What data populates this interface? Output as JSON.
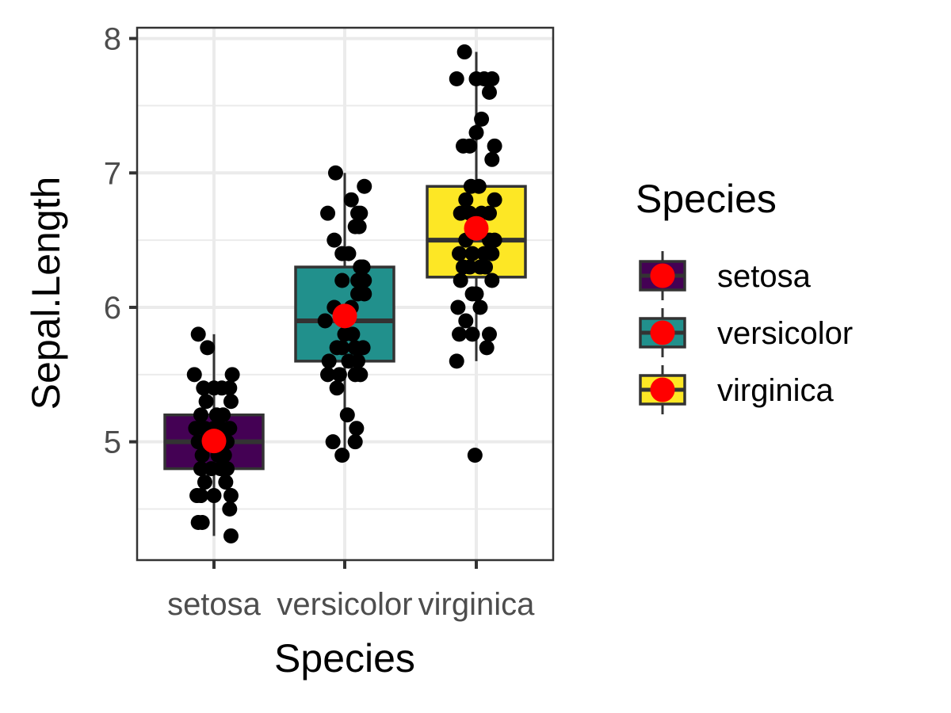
{
  "chart_data": {
    "type": "box",
    "xlabel": "Species",
    "ylabel": "Sepal.Length",
    "categories": [
      "setosa",
      "versicolor",
      "virginica"
    ],
    "ylim": [
      4.12,
      8.08
    ],
    "y_ticks": [
      5,
      6,
      7,
      8
    ],
    "y_minor_ticks": [
      4.5,
      5.5,
      6.5,
      7.5
    ],
    "grid": true,
    "legend": {
      "title": "Species",
      "position": "right",
      "entries": [
        "setosa",
        "versicolor",
        "virginica"
      ]
    },
    "colors": {
      "setosa": "#440154",
      "versicolor": "#21908C",
      "virginica": "#FDE725",
      "mean_marker": "#FF0000",
      "points": "#000000",
      "box_outline": "#333333"
    },
    "boxes": [
      {
        "name": "setosa",
        "min": 4.3,
        "q1": 4.8,
        "median": 5.0,
        "q3": 5.2,
        "max": 5.8,
        "mean": 5.006,
        "outliers": []
      },
      {
        "name": "versicolor",
        "min": 4.9,
        "q1": 5.6,
        "median": 5.9,
        "q3": 6.3,
        "max": 7.0,
        "mean": 5.936,
        "outliers": []
      },
      {
        "name": "virginica",
        "min": 5.6,
        "q1": 6.225,
        "median": 6.5,
        "q3": 6.9,
        "max": 7.9,
        "mean": 6.588,
        "outliers": [
          4.9
        ]
      }
    ],
    "points": [
      {
        "series": "setosa",
        "values": [
          {
            "dx": -0.12,
            "y": 5.8
          },
          {
            "dx": -0.05,
            "y": 5.7
          },
          {
            "dx": -0.15,
            "y": 5.5
          },
          {
            "dx": 0.14,
            "y": 5.5
          },
          {
            "dx": -0.08,
            "y": 5.4
          },
          {
            "dx": 0.0,
            "y": 5.4
          },
          {
            "dx": 0.06,
            "y": 5.4
          },
          {
            "dx": 0.12,
            "y": 5.4
          },
          {
            "dx": -0.06,
            "y": 5.3
          },
          {
            "dx": 0.13,
            "y": 5.3
          },
          {
            "dx": -0.1,
            "y": 5.2
          },
          {
            "dx": 0.02,
            "y": 5.2
          },
          {
            "dx": 0.07,
            "y": 5.2
          },
          {
            "dx": -0.14,
            "y": 5.1
          },
          {
            "dx": -0.07,
            "y": 5.1
          },
          {
            "dx": 0.0,
            "y": 5.1
          },
          {
            "dx": 0.05,
            "y": 5.1
          },
          {
            "dx": 0.12,
            "y": 5.1
          },
          {
            "dx": -0.12,
            "y": 5.0
          },
          {
            "dx": -0.03,
            "y": 5.0
          },
          {
            "dx": 0.04,
            "y": 5.0
          },
          {
            "dx": 0.1,
            "y": 5.0
          },
          {
            "dx": -0.09,
            "y": 4.9
          },
          {
            "dx": 0.03,
            "y": 4.9
          },
          {
            "dx": 0.08,
            "y": 4.9
          },
          {
            "dx": -0.1,
            "y": 4.8
          },
          {
            "dx": -0.02,
            "y": 4.8
          },
          {
            "dx": 0.05,
            "y": 4.8
          },
          {
            "dx": 0.1,
            "y": 4.8
          },
          {
            "dx": -0.07,
            "y": 4.7
          },
          {
            "dx": 0.09,
            "y": 4.7
          },
          {
            "dx": -0.13,
            "y": 4.6
          },
          {
            "dx": -0.1,
            "y": 4.6
          },
          {
            "dx": 0.0,
            "y": 4.6
          },
          {
            "dx": 0.13,
            "y": 4.6
          },
          {
            "dx": 0.12,
            "y": 4.5
          },
          {
            "dx": -0.12,
            "y": 4.4
          },
          {
            "dx": -0.09,
            "y": 4.4
          },
          {
            "dx": 0.13,
            "y": 4.3
          }
        ]
      },
      {
        "series": "versicolor",
        "values": [
          {
            "dx": -0.07,
            "y": 7.0
          },
          {
            "dx": 0.15,
            "y": 6.9
          },
          {
            "dx": 0.05,
            "y": 6.8
          },
          {
            "dx": -0.13,
            "y": 6.7
          },
          {
            "dx": 0.1,
            "y": 6.7
          },
          {
            "dx": 0.12,
            "y": 6.7
          },
          {
            "dx": 0.08,
            "y": 6.6
          },
          {
            "dx": 0.11,
            "y": 6.6
          },
          {
            "dx": -0.08,
            "y": 6.5
          },
          {
            "dx": -0.02,
            "y": 6.4
          },
          {
            "dx": 0.03,
            "y": 6.4
          },
          {
            "dx": 0.14,
            "y": 6.3
          },
          {
            "dx": 0.12,
            "y": 6.3
          },
          {
            "dx": 0.1,
            "y": 6.2
          },
          {
            "dx": -0.02,
            "y": 6.2
          },
          {
            "dx": 0.15,
            "y": 6.2
          },
          {
            "dx": 0.1,
            "y": 6.1
          },
          {
            "dx": 0.15,
            "y": 6.1
          },
          {
            "dx": 0.05,
            "y": 6.0
          },
          {
            "dx": -0.08,
            "y": 6.0
          },
          {
            "dx": -0.15,
            "y": 5.9
          },
          {
            "dx": 0.0,
            "y": 5.8
          },
          {
            "dx": 0.06,
            "y": 5.8
          },
          {
            "dx": -0.06,
            "y": 5.7
          },
          {
            "dx": 0.08,
            "y": 5.7
          },
          {
            "dx": 0.14,
            "y": 5.7
          },
          {
            "dx": -0.02,
            "y": 5.7
          },
          {
            "dx": -0.12,
            "y": 5.6
          },
          {
            "dx": 0.1,
            "y": 5.6
          },
          {
            "dx": 0.03,
            "y": 5.6
          },
          {
            "dx": -0.13,
            "y": 5.5
          },
          {
            "dx": -0.04,
            "y": 5.5
          },
          {
            "dx": 0.08,
            "y": 5.5
          },
          {
            "dx": 0.12,
            "y": 5.5
          },
          {
            "dx": -0.06,
            "y": 5.4
          },
          {
            "dx": 0.02,
            "y": 5.2
          },
          {
            "dx": 0.09,
            "y": 5.1
          },
          {
            "dx": -0.09,
            "y": 5.0
          },
          {
            "dx": 0.08,
            "y": 5.0
          },
          {
            "dx": -0.02,
            "y": 4.9
          }
        ]
      },
      {
        "series": "virginica",
        "values": [
          {
            "dx": -0.09,
            "y": 7.9
          },
          {
            "dx": -0.15,
            "y": 7.7
          },
          {
            "dx": 0.0,
            "y": 7.7
          },
          {
            "dx": 0.06,
            "y": 7.7
          },
          {
            "dx": 0.12,
            "y": 7.7
          },
          {
            "dx": 0.1,
            "y": 7.6
          },
          {
            "dx": 0.04,
            "y": 7.4
          },
          {
            "dx": 0.0,
            "y": 7.3
          },
          {
            "dx": -0.1,
            "y": 7.2
          },
          {
            "dx": -0.05,
            "y": 7.2
          },
          {
            "dx": 0.14,
            "y": 7.2
          },
          {
            "dx": 0.12,
            "y": 7.1
          },
          {
            "dx": -0.04,
            "y": 6.9
          },
          {
            "dx": 0.02,
            "y": 6.9
          },
          {
            "dx": -0.08,
            "y": 6.8
          },
          {
            "dx": 0.14,
            "y": 6.8
          },
          {
            "dx": -0.12,
            "y": 6.7
          },
          {
            "dx": -0.05,
            "y": 6.7
          },
          {
            "dx": 0.04,
            "y": 6.7
          },
          {
            "dx": 0.1,
            "y": 6.7
          },
          {
            "dx": -0.08,
            "y": 6.5
          },
          {
            "dx": 0.1,
            "y": 6.5
          },
          {
            "dx": 0.14,
            "y": 6.5
          },
          {
            "dx": -0.13,
            "y": 6.4
          },
          {
            "dx": -0.03,
            "y": 6.4
          },
          {
            "dx": 0.06,
            "y": 6.4
          },
          {
            "dx": 0.12,
            "y": 6.4
          },
          {
            "dx": -0.1,
            "y": 6.3
          },
          {
            "dx": -0.05,
            "y": 6.3
          },
          {
            "dx": 0.03,
            "y": 6.3
          },
          {
            "dx": 0.07,
            "y": 6.3
          },
          {
            "dx": -0.12,
            "y": 6.2
          },
          {
            "dx": 0.12,
            "y": 6.2
          },
          {
            "dx": -0.03,
            "y": 6.1
          },
          {
            "dx": 0.0,
            "y": 6.1
          },
          {
            "dx": -0.14,
            "y": 6.0
          },
          {
            "dx": 0.03,
            "y": 6.0
          },
          {
            "dx": -0.08,
            "y": 5.9
          },
          {
            "dx": -0.13,
            "y": 5.8
          },
          {
            "dx": -0.03,
            "y": 5.8
          },
          {
            "dx": 0.1,
            "y": 5.8
          },
          {
            "dx": 0.08,
            "y": 5.7
          },
          {
            "dx": -0.15,
            "y": 5.6
          },
          {
            "dx": -0.01,
            "y": 4.9
          }
        ]
      }
    ]
  }
}
